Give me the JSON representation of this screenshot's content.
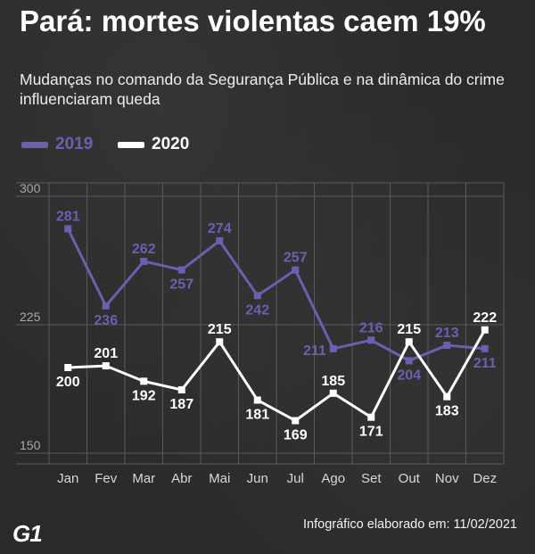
{
  "header": {
    "title": "Pará: mortes violentas caem 19%",
    "subtitle": "Mudanças no comando da Segurança Pública e na dinâmica do crime influenciaram queda"
  },
  "footer": {
    "logo": "G1",
    "credit": "Infográfico elaborado em: 11/02/2021"
  },
  "colors": {
    "series_2019": "#6c5fb0",
    "series_2020": "#ffffff",
    "grid": "#5a5a5a",
    "axis_text": "#d8d8d8"
  },
  "chart_data": {
    "type": "line",
    "categories": [
      "Jan",
      "Fev",
      "Mar",
      "Abr",
      "Mai",
      "Jun",
      "Jul",
      "Ago",
      "Set",
      "Out",
      "Nov",
      "Dez"
    ],
    "yticks": [
      150,
      225,
      300
    ],
    "ylim": [
      150,
      300
    ],
    "grid": true,
    "legend_position": "top-left",
    "series": [
      {
        "name": "2019",
        "values": [
          281,
          236,
          262,
          257,
          274,
          242,
          257,
          211,
          216,
          204,
          213,
          211
        ],
        "label_pos": [
          "above",
          "below",
          "above",
          "below",
          "above",
          "below",
          "above",
          "left",
          "above",
          "below",
          "above",
          "below"
        ]
      },
      {
        "name": "2020",
        "values": [
          200,
          201,
          192,
          187,
          215,
          181,
          169,
          185,
          171,
          215,
          183,
          222
        ],
        "label_pos": [
          "below",
          "above",
          "below",
          "below",
          "above",
          "below",
          "below",
          "above",
          "below",
          "above",
          "below",
          "above"
        ]
      }
    ]
  }
}
